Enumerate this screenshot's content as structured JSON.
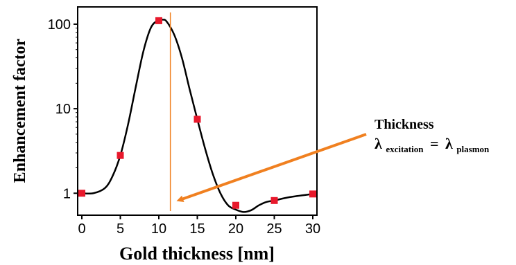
{
  "chart_data": {
    "type": "scatter",
    "title": "",
    "xlabel": "Gold thickness [nm]",
    "ylabel": "Enhancement factor",
    "x_ticks": [
      0,
      5,
      10,
      15,
      20,
      25,
      30
    ],
    "y_ticks": [
      1,
      10,
      100
    ],
    "y_tick_labels": [
      "1",
      "10",
      "100"
    ],
    "xlim": [
      0,
      30
    ],
    "ylim": [
      0.55,
      160
    ],
    "y_scale": "log",
    "grid": false,
    "series": [
      {
        "marker": "square",
        "color": "#e8192c",
        "x": [
          0,
          5,
          10,
          15,
          20,
          25,
          30
        ],
        "y": [
          1.0,
          2.8,
          110,
          7.5,
          0.72,
          0.82,
          0.98
        ]
      }
    ],
    "fit_curve": {
      "color": "#000000",
      "x": [
        0,
        1.5,
        3,
        4,
        5,
        6,
        7,
        8,
        9,
        10,
        10.5,
        11,
        12,
        13,
        14,
        15,
        16,
        17,
        18,
        19,
        20,
        21,
        22,
        23,
        24,
        25,
        27,
        30
      ],
      "y": [
        1.0,
        1.0,
        1.15,
        1.6,
        2.8,
        6.5,
        18,
        48,
        92,
        112,
        113,
        108,
        75,
        40,
        17,
        7.5,
        3.4,
        1.7,
        1.0,
        0.72,
        0.64,
        0.6,
        0.63,
        0.72,
        0.79,
        0.82,
        0.9,
        0.98
      ]
    },
    "reference_line": {
      "x": 11.5,
      "color": "#f08020"
    },
    "annotation": {
      "line1": "Thickness",
      "lambda": "λ",
      "sub1": "excitation",
      "equals": "=",
      "sub2": "plasmon",
      "arrow_color": "#f08020"
    }
  }
}
